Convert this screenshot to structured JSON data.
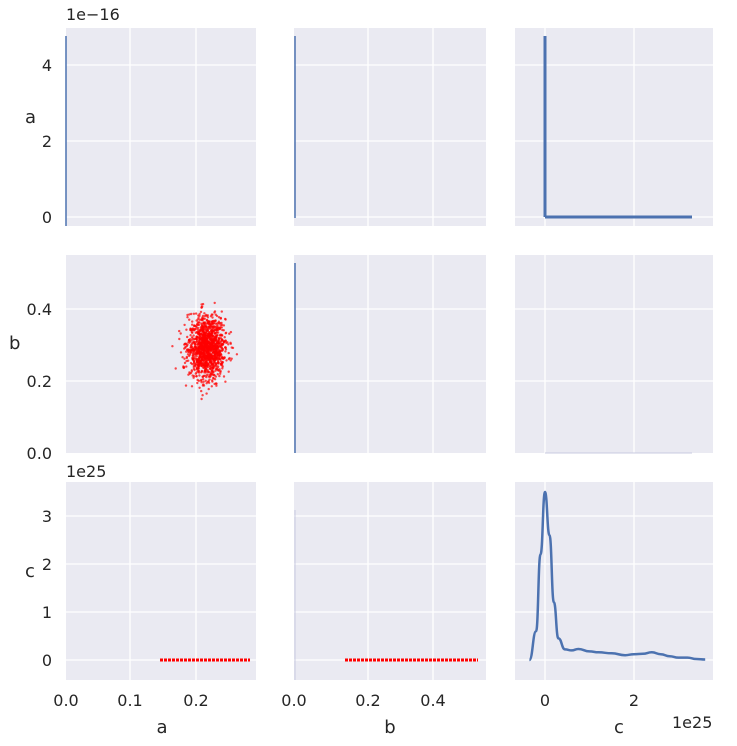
{
  "chart_data": {
    "type": "scatter",
    "title": "",
    "subtitle": "",
    "layout": "3x3 pair grid",
    "variables": [
      "a",
      "b",
      "c"
    ],
    "axis_labels": {
      "x": [
        "a",
        "b",
        "c"
      ],
      "y": [
        "a",
        "b",
        "c"
      ]
    },
    "scale_offsets": {
      "a": "1e−16",
      "c_y": "1e25",
      "c_x": "1e25"
    },
    "ticks": {
      "a_y": [
        "0",
        "2",
        "4"
      ],
      "b_y": [
        "0.0",
        "0.2",
        "0.4"
      ],
      "c_y": [
        "0",
        "1",
        "2",
        "3"
      ],
      "a_x": [
        "0.0",
        "0.1",
        "0.2"
      ],
      "b_x": [
        "0.2",
        "0.4"
      ],
      "b_x_zero": "0.0",
      "c_x": [
        "0",
        "2"
      ]
    },
    "panels": [
      {
        "row": "a",
        "col": "a",
        "type": "vertical-line",
        "x": 0
      },
      {
        "row": "a",
        "col": "b",
        "type": "vertical-line",
        "x": 0
      },
      {
        "row": "a",
        "col": "c",
        "type": "scatter-L",
        "color": "#4c72b0",
        "vertical_x": 0,
        "vertical_y_range": [
          0,
          4.75
        ],
        "horizontal_y": 0,
        "horizontal_x_range": [
          0,
          3.3
        ]
      },
      {
        "row": "b",
        "col": "a",
        "type": "scatter-cloud",
        "color": "#ff0000",
        "center": [
          0.215,
          0.285
        ],
        "x_range": [
          0.15,
          0.28
        ],
        "y_range": [
          0.15,
          0.52
        ]
      },
      {
        "row": "b",
        "col": "b",
        "type": "vertical-line",
        "x": 0
      },
      {
        "row": "b",
        "col": "c",
        "type": "empty"
      },
      {
        "row": "c",
        "col": "a",
        "type": "horizontal-strip",
        "color": "#ff0000",
        "y": 0,
        "x_range": [
          0.15,
          0.28
        ]
      },
      {
        "row": "c",
        "col": "b",
        "type": "horizontal-strip",
        "color": "#ff0000",
        "y": 0,
        "x_range": [
          0.15,
          0.52
        ]
      },
      {
        "row": "c",
        "col": "c",
        "type": "kde",
        "color": "#4c72b0",
        "x": [
          -0.35,
          -0.2,
          -0.1,
          0,
          0.1,
          0.2,
          0.3,
          0.45,
          0.6,
          0.75,
          1.0,
          1.2,
          1.5,
          1.8,
          2.0,
          2.2,
          2.4,
          2.6,
          2.8,
          3.0,
          3.2,
          3.4,
          3.6
        ],
        "y": [
          0.0,
          0.6,
          2.2,
          3.5,
          2.6,
          1.2,
          0.45,
          0.22,
          0.2,
          0.23,
          0.18,
          0.16,
          0.14,
          0.1,
          0.12,
          0.13,
          0.16,
          0.12,
          0.08,
          0.05,
          0.05,
          0.02,
          0.01
        ]
      }
    ],
    "grid": true,
    "legend": "none"
  },
  "colors": {
    "panel_bg": "#eaeaf2",
    "grid": "#ffffff",
    "blue": "#4c72b0",
    "red": "#ff0000",
    "text": "#262626"
  }
}
